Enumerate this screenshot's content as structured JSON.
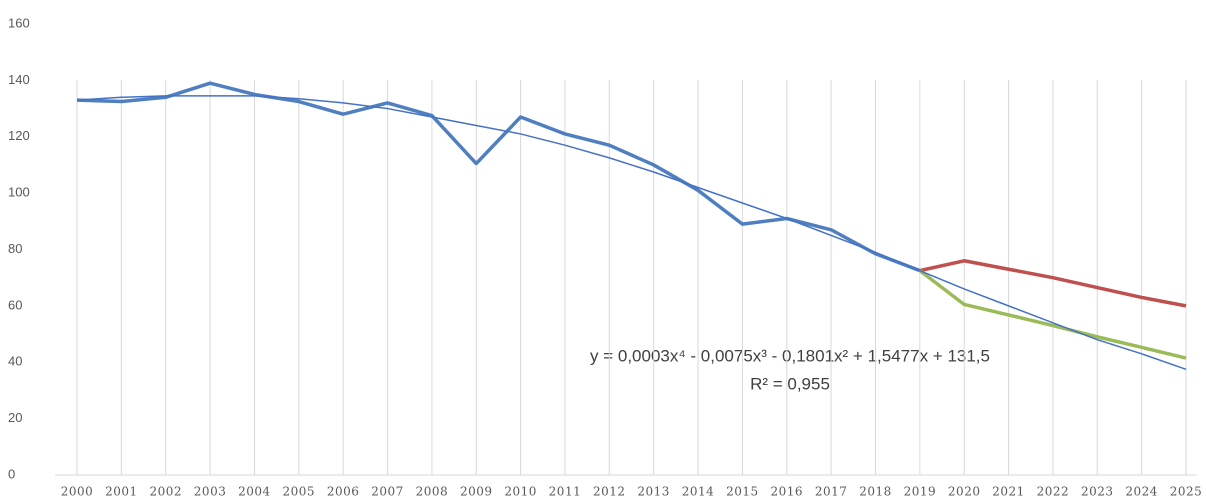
{
  "chart_data": {
    "type": "line",
    "categories": [
      "2000",
      "2001",
      "2002",
      "2003",
      "2004",
      "2005",
      "2006",
      "2007",
      "2008",
      "2009",
      "2010",
      "2011",
      "2012",
      "2013",
      "2014",
      "2015",
      "2016",
      "2017",
      "2018",
      "2019",
      "2020",
      "2021",
      "2022",
      "2023",
      "2024",
      "2025"
    ],
    "series": [
      {
        "color": "#4f7fc0",
        "width": 3.5,
        "values": [
          133,
          132.5,
          134,
          139,
          135,
          132.5,
          128,
          132,
          127.5,
          110.5,
          127,
          121,
          117,
          110,
          101,
          89,
          91,
          87,
          78.5,
          72.5,
          null,
          null,
          null,
          null,
          null,
          null
        ]
      },
      {
        "color": "#c0504d",
        "width": 3.5,
        "values": [
          null,
          null,
          null,
          null,
          null,
          null,
          null,
          null,
          null,
          null,
          null,
          null,
          null,
          null,
          null,
          null,
          null,
          null,
          null,
          72.5,
          76,
          73,
          70,
          66.5,
          63,
          60
        ]
      },
      {
        "color": "#9bbb59",
        "width": 3.5,
        "values": [
          null,
          null,
          null,
          null,
          null,
          null,
          null,
          null,
          null,
          null,
          null,
          null,
          null,
          null,
          null,
          null,
          null,
          null,
          null,
          72.5,
          60.5,
          56.8,
          53,
          49,
          45.3,
          41.5
        ]
      },
      {
        "color": "#4472c4",
        "width": 1.5,
        "values": [
          133,
          134,
          134.5,
          134.5,
          134.5,
          133.5,
          132,
          130,
          127,
          124,
          121,
          117,
          112.5,
          107.5,
          102,
          96.5,
          91,
          85,
          79,
          72.5,
          66,
          60,
          54,
          48,
          43,
          37.5
        ]
      }
    ],
    "ylim": [
      0,
      160
    ],
    "yticks": [
      0,
      20,
      40,
      60,
      80,
      100,
      120,
      140,
      160
    ],
    "annotations": [
      "y = 0,0003x⁴ - 0,0075x³ - 0,1801x² + 1,5477x + 131,5",
      "R² = 0,955"
    ]
  }
}
